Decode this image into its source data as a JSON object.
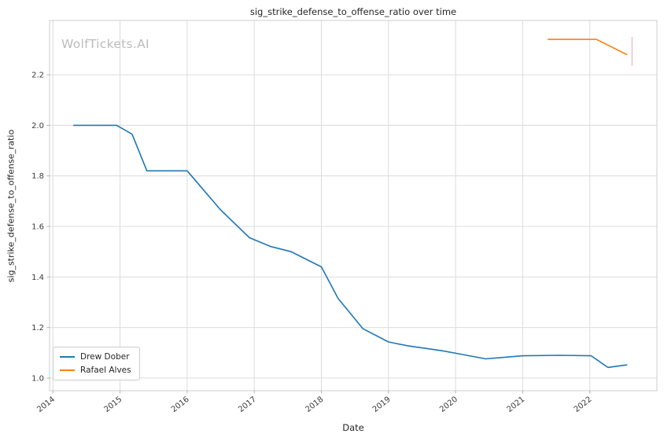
{
  "watermark": "WolfTickets.AI",
  "chart_data": {
    "type": "line",
    "title": "sig_strike_defense_to_offense_ratio over time",
    "xlabel": "Date",
    "ylabel": "sig_strike_defense_to_offense_ratio",
    "x_range": [
      2013.95,
      2023.0
    ],
    "y_range": [
      0.95,
      2.415
    ],
    "x_ticks": [
      2014,
      2015,
      2016,
      2017,
      2018,
      2019,
      2020,
      2021,
      2022
    ],
    "y_ticks": [
      1.0,
      1.2,
      1.4,
      1.6,
      1.8,
      2.0,
      2.2
    ],
    "grid": true,
    "legend_position": "lower left",
    "style": {
      "grid": "#dcdcdc",
      "spine": "#cccccc",
      "tick": "#b0b0b0",
      "text_tick": "#3b3b3b",
      "text": "#262626"
    },
    "series": [
      {
        "name": "Drew Dober",
        "color": "#1f77b4",
        "points": [
          [
            2014.31,
            2.0
          ],
          [
            2014.95,
            2.0
          ],
          [
            2015.18,
            1.965
          ],
          [
            2015.4,
            1.82
          ],
          [
            2016.0,
            1.82
          ],
          [
            2016.5,
            1.665
          ],
          [
            2016.93,
            1.555
          ],
          [
            2017.25,
            1.52
          ],
          [
            2017.55,
            1.5
          ],
          [
            2018.0,
            1.44
          ],
          [
            2018.25,
            1.315
          ],
          [
            2018.62,
            1.195
          ],
          [
            2019.0,
            1.143
          ],
          [
            2019.28,
            1.128
          ],
          [
            2019.8,
            1.108
          ],
          [
            2020.05,
            1.096
          ],
          [
            2020.45,
            1.076
          ],
          [
            2021.0,
            1.088
          ],
          [
            2021.55,
            1.09
          ],
          [
            2022.02,
            1.088
          ],
          [
            2022.27,
            1.042
          ],
          [
            2022.55,
            1.052
          ]
        ]
      },
      {
        "name": "Rafael Alves",
        "color": "#ff7f0e",
        "points": [
          [
            2021.38,
            2.34
          ],
          [
            2022.1,
            2.34
          ],
          [
            2022.55,
            2.28
          ]
        ]
      }
    ],
    "annotation": {
      "x": 2022.63,
      "y_from": 2.235,
      "y_to": 2.35,
      "color": "#f2c1bb"
    }
  }
}
